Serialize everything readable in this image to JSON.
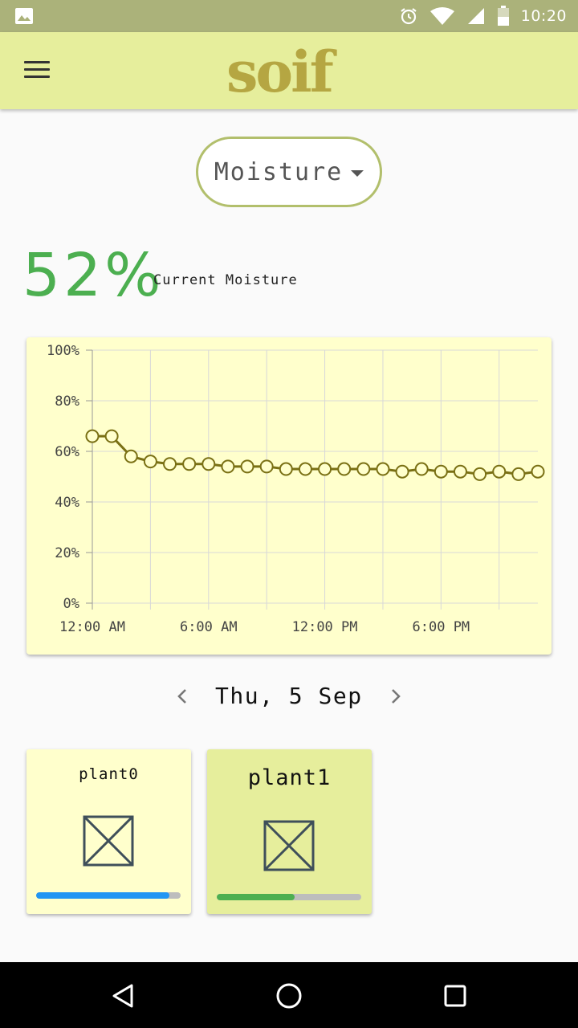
{
  "status_bar": {
    "time": "10:20",
    "icons": [
      "gallery-icon",
      "alarm-icon",
      "wifi-icon",
      "signal-icon",
      "battery-icon"
    ]
  },
  "app_bar": {
    "logo_text": "soif",
    "menu_icon": "hamburger-menu-icon"
  },
  "metric_selector": {
    "selected": "Moisture",
    "icon": "caret-down-icon"
  },
  "current": {
    "value": "52%",
    "label": "Current Moisture"
  },
  "chart_data": {
    "type": "line",
    "y_ticks": [
      "100%",
      "80%",
      "60%",
      "40%",
      "20%",
      "0%"
    ],
    "x_ticks": [
      "12:00 AM",
      "6:00 AM",
      "12:00 PM",
      "6:00 PM"
    ],
    "ylim": [
      0,
      100
    ],
    "xlim_hours": [
      0,
      23
    ],
    "x": [
      0,
      1,
      2,
      3,
      4,
      5,
      6,
      7,
      8,
      9,
      10,
      11,
      12,
      13,
      14,
      15,
      16,
      17,
      18,
      19,
      20,
      21,
      22,
      23
    ],
    "values": [
      66,
      66,
      58,
      56,
      55,
      55,
      55,
      54,
      54,
      54,
      53,
      53,
      53,
      53,
      53,
      53,
      52,
      53,
      52,
      52,
      51,
      52,
      51,
      52
    ],
    "line_color": "#7a7014",
    "point_fill": "#ffffcc",
    "grid": true
  },
  "date_nav": {
    "date": "Thu, 5 Sep",
    "prev_icon": "chevron-left-icon",
    "next_icon": "chevron-right-icon"
  },
  "plants": [
    {
      "name": "plant0",
      "level": 0.92,
      "bar_color": "#2196f3",
      "icon": "image-placeholder-icon"
    },
    {
      "name": "plant1",
      "level": 0.54,
      "bar_color": "#4caf50",
      "icon": "image-placeholder-icon"
    }
  ],
  "nav_bar": {
    "icons": [
      "back-icon",
      "home-icon",
      "recents-icon"
    ]
  },
  "colors": {
    "accent": "#4caf50",
    "app_bar": "#e6ee9c",
    "status_bar": "#abb27a",
    "card": "#ffffcc"
  }
}
